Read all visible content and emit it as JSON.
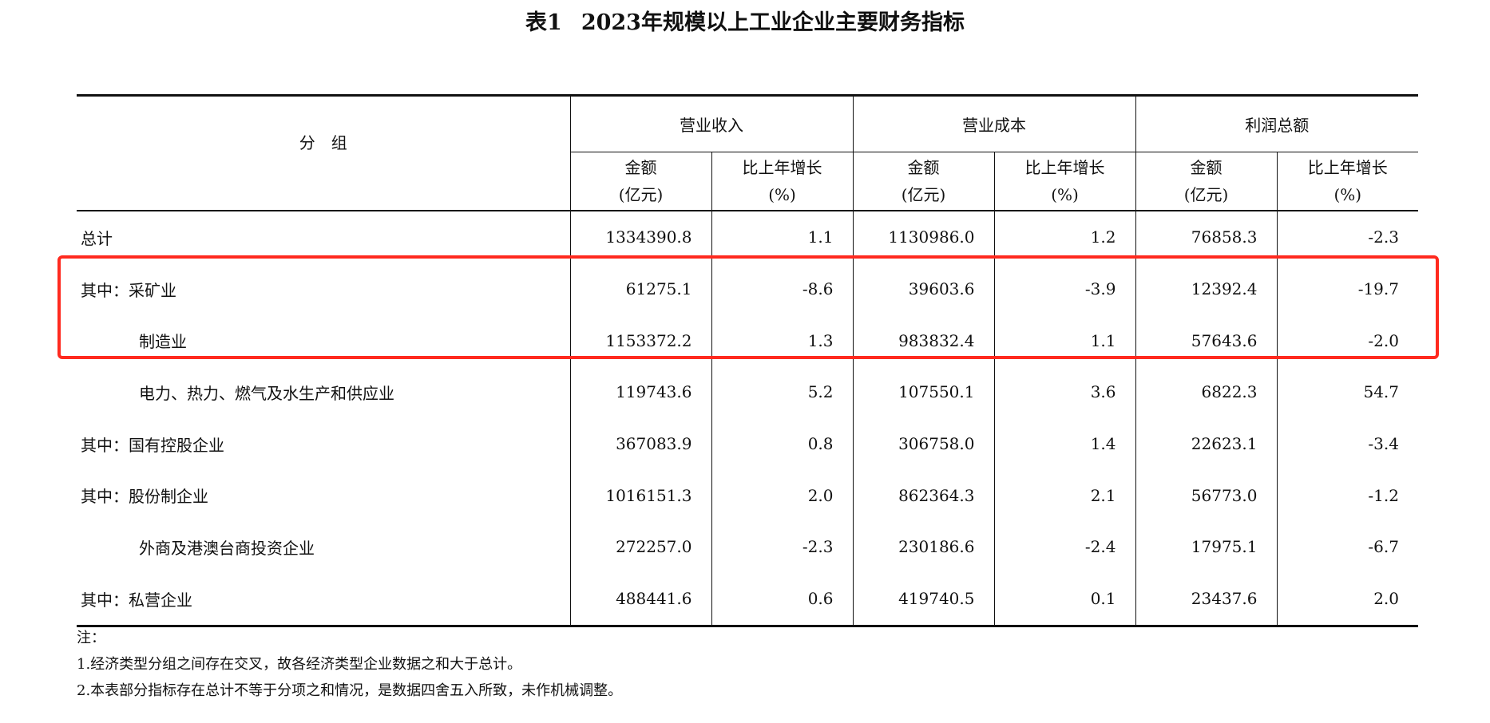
{
  "title": {
    "label": "表1",
    "text": "2023年规模以上工业企业主要财务指标"
  },
  "header": {
    "group": "分　组",
    "sections": [
      "营业收入",
      "营业成本",
      "利润总额"
    ],
    "amount": "金额",
    "amount_unit": "(亿元)",
    "growth": "比上年增长",
    "growth_unit": "(%)"
  },
  "rows": [
    {
      "label": "总计",
      "indent": false,
      "values": [
        "1334390.8",
        "1.1",
        "1130986.0",
        "1.2",
        "76858.3",
        "-2.3"
      ]
    },
    {
      "label": "其中：采矿业",
      "indent": false,
      "values": [
        "61275.1",
        "-8.6",
        "39603.6",
        "-3.9",
        "12392.4",
        "-19.7"
      ]
    },
    {
      "label": "制造业",
      "indent": true,
      "values": [
        "1153372.2",
        "1.3",
        "983832.4",
        "1.1",
        "57643.6",
        "-2.0"
      ]
    },
    {
      "label": "电力、热力、燃气及水生产和供应业",
      "indent": true,
      "values": [
        "119743.6",
        "5.2",
        "107550.1",
        "3.6",
        "6822.3",
        "54.7"
      ]
    },
    {
      "label": "其中：国有控股企业",
      "indent": false,
      "values": [
        "367083.9",
        "0.8",
        "306758.0",
        "1.4",
        "22623.1",
        "-3.4"
      ]
    },
    {
      "label": "其中：股份制企业",
      "indent": false,
      "values": [
        "1016151.3",
        "2.0",
        "862364.3",
        "2.1",
        "56773.0",
        "-1.2"
      ]
    },
    {
      "label": "外商及港澳台商投资企业",
      "indent": true,
      "values": [
        "272257.0",
        "-2.3",
        "230186.6",
        "-2.4",
        "17975.1",
        "-6.7"
      ]
    },
    {
      "label": "其中：私营企业",
      "indent": false,
      "values": [
        "488441.6",
        "0.6",
        "419740.5",
        "0.1",
        "23437.6",
        "2.0"
      ]
    }
  ],
  "notes": [
    "注：",
    "1.经济类型分组之间存在交叉，故各经济类型企业数据之和大于总计。",
    "2.本表部分指标存在总计不等于分项之和情况，是数据四舍五入所致，未作机械调整。"
  ],
  "highlight_color": "#ff2a1f"
}
